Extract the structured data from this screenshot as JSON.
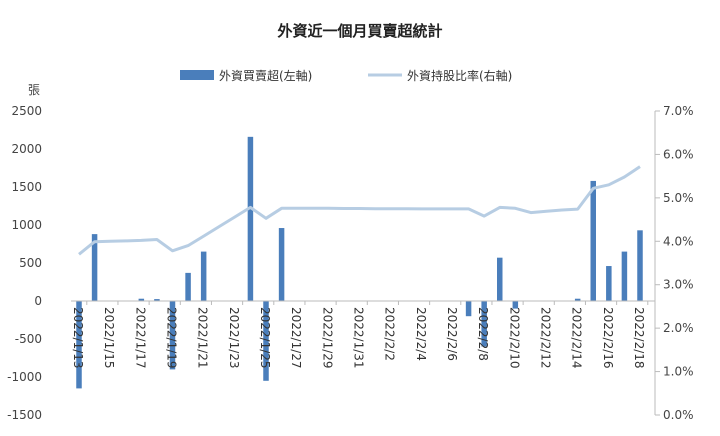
{
  "chart_data": {
    "type": "bar+line",
    "title": "外資近一個月買賣超統計",
    "y_left_unit": "張",
    "y_left_range": [
      -1500,
      2500
    ],
    "y_left_ticks": [
      "2500",
      "2000",
      "1500",
      "1000",
      "500",
      "0",
      "-500",
      "-1000",
      "-1500"
    ],
    "y_right_range": [
      0.0,
      7.0
    ],
    "y_right_ticks": [
      "7.0%",
      "6.0%",
      "5.0%",
      "4.0%",
      "3.0%",
      "2.0%",
      "1.0%",
      "0.0%"
    ],
    "legend_position": "top",
    "x_tick_labels": [
      "2022/1/13",
      "2022/1/15",
      "2022/1/17",
      "2022/1/19",
      "2022/1/21",
      "2022/1/23",
      "2022/1/25",
      "2022/1/27",
      "2022/1/29",
      "2022/1/31",
      "2022/2/2",
      "2022/2/4",
      "2022/2/6",
      "2022/2/8",
      "2022/2/10",
      "2022/2/12",
      "2022/2/14",
      "2022/2/16",
      "2022/2/18"
    ],
    "dates": [
      "2022/1/13",
      "2022/1/14",
      "2022/1/15",
      "2022/1/16",
      "2022/1/17",
      "2022/1/18",
      "2022/1/19",
      "2022/1/20",
      "2022/1/21",
      "2022/1/22",
      "2022/1/23",
      "2022/1/24",
      "2022/1/25",
      "2022/1/26",
      "2022/1/27",
      "2022/1/28",
      "2022/1/29",
      "2022/1/30",
      "2022/1/31",
      "2022/2/1",
      "2022/2/2",
      "2022/2/3",
      "2022/2/4",
      "2022/2/5",
      "2022/2/6",
      "2022/2/7",
      "2022/2/8",
      "2022/2/9",
      "2022/2/10",
      "2022/2/11",
      "2022/2/12",
      "2022/2/13",
      "2022/2/14",
      "2022/2/15",
      "2022/2/16",
      "2022/2/17",
      "2022/2/18"
    ],
    "series": [
      {
        "name": "外資買賣超(左軸)",
        "type": "bar",
        "axis": "left",
        "color": "#4a7ebb",
        "values": [
          -1150,
          880,
          null,
          null,
          30,
          25,
          -900,
          370,
          650,
          null,
          null,
          2160,
          -1050,
          960,
          null,
          null,
          null,
          null,
          null,
          null,
          null,
          null,
          null,
          null,
          null,
          -200,
          -600,
          570,
          -100,
          null,
          null,
          null,
          30,
          1580,
          460,
          650,
          930
        ]
      },
      {
        "name": "外資持股比率(右軸)",
        "type": "line",
        "axis": "right",
        "color": "#b7cde3",
        "values": [
          3.7,
          3.99,
          4.0,
          4.01,
          4.02,
          4.04,
          3.78,
          3.9,
          4.12,
          4.34,
          4.56,
          4.78,
          4.53,
          4.76,
          4.76,
          4.76,
          4.76,
          4.755,
          4.755,
          4.75,
          4.75,
          4.75,
          4.745,
          4.745,
          4.745,
          4.745,
          4.58,
          4.78,
          4.76,
          4.66,
          4.69,
          4.72,
          4.74,
          5.22,
          5.3,
          5.48,
          5.72
        ]
      }
    ]
  }
}
